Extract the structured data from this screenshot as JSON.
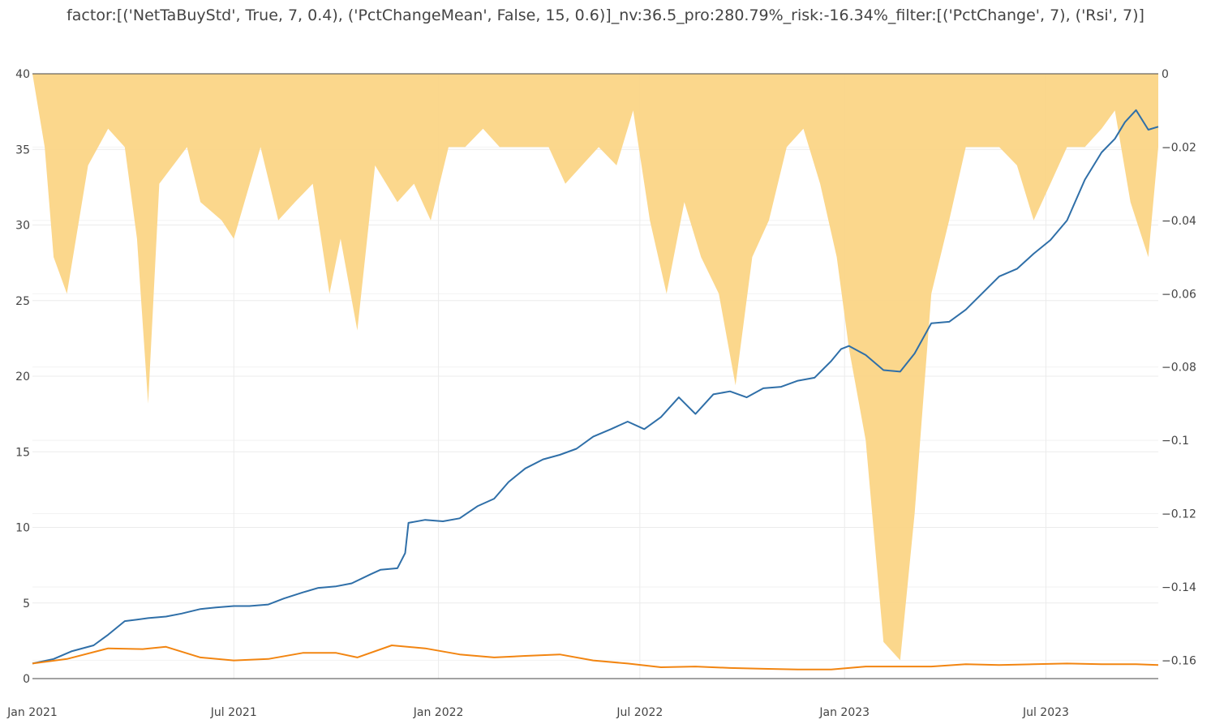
{
  "chart_data": {
    "type": "line",
    "title": "factor:[('NetTaBuyStd', True, 7, 0.4), ('PctChangeMean', False, 15, 0.6)]_nv:36.5_pro:280.79%_risk:-16.34%_filter:[('PctChange', 7), ('Rsi', 7)]",
    "xlabel": "",
    "ylabel": "",
    "y2label": "",
    "x_ticks": [
      "Jan 2021",
      "Jul 2021",
      "Jan 2022",
      "Jul 2022",
      "Jan 2023",
      "Jul 2023"
    ],
    "y_ticks": [
      0,
      5,
      10,
      15,
      20,
      25,
      30,
      35,
      40
    ],
    "y2_ticks": [
      0,
      -0.02,
      -0.04,
      -0.06,
      -0.08,
      -0.1,
      -0.12,
      -0.14,
      -0.16
    ],
    "ylim": [
      0,
      40
    ],
    "y2lim": [
      -0.165,
      0
    ],
    "xlim": [
      "2021-01-01",
      "2023-10-10"
    ],
    "grid": true,
    "colors": {
      "net_value": "#2f6fa8",
      "benchmark": "#f28511",
      "drawdown": "#fbd586"
    },
    "series": [
      {
        "type": "line",
        "axis": "left",
        "x": [
          "2021-01-01",
          "2021-01-20",
          "2021-02-05",
          "2021-02-25",
          "2021-03-10",
          "2021-03-25",
          "2021-04-05",
          "2021-04-15",
          "2021-05-01",
          "2021-05-15",
          "2021-06-01",
          "2021-06-15",
          "2021-07-01",
          "2021-07-15",
          "2021-08-01",
          "2021-08-15",
          "2021-09-01",
          "2021-09-15",
          "2021-10-01",
          "2021-10-15",
          "2021-11-01",
          "2021-11-10",
          "2021-11-25",
          "2021-12-02",
          "2021-12-05",
          "2021-12-20",
          "2022-01-05",
          "2022-01-20",
          "2022-02-05",
          "2022-02-20",
          "2022-03-05",
          "2022-03-20",
          "2022-04-05",
          "2022-04-20",
          "2022-05-05",
          "2022-05-20",
          "2022-06-05",
          "2022-06-20",
          "2022-07-05",
          "2022-07-20",
          "2022-08-05",
          "2022-08-20",
          "2022-09-05",
          "2022-09-20",
          "2022-10-05",
          "2022-10-20",
          "2022-11-05",
          "2022-11-20",
          "2022-12-05",
          "2022-12-20",
          "2022-12-29",
          "2023-01-05",
          "2023-01-20",
          "2023-02-05",
          "2023-02-20",
          "2023-03-05",
          "2023-03-20",
          "2023-04-05",
          "2023-04-20",
          "2023-05-05",
          "2023-05-20",
          "2023-06-05",
          "2023-06-20",
          "2023-07-05",
          "2023-07-20",
          "2023-08-05",
          "2023-08-20",
          "2023-09-01",
          "2023-09-10",
          "2023-09-20",
          "2023-10-01",
          "2023-10-10"
        ],
        "y": [
          1.0,
          1.3,
          1.8,
          2.2,
          2.9,
          3.8,
          3.9,
          4.0,
          4.1,
          4.3,
          4.6,
          4.7,
          4.8,
          4.8,
          4.9,
          5.3,
          5.7,
          6.0,
          6.1,
          6.3,
          6.9,
          7.2,
          7.3,
          8.3,
          10.3,
          10.5,
          10.4,
          10.6,
          11.4,
          11.9,
          13.0,
          13.9,
          14.5,
          14.8,
          15.2,
          16.0,
          16.5,
          17.0,
          16.5,
          17.3,
          18.6,
          17.5,
          18.8,
          19.0,
          18.6,
          19.2,
          19.3,
          19.7,
          19.9,
          21.0,
          21.8,
          22.0,
          21.4,
          20.4,
          20.3,
          21.5,
          23.5,
          23.6,
          24.4,
          25.5,
          26.6,
          27.1,
          28.1,
          29.0,
          30.3,
          33.0,
          34.8,
          35.7,
          36.8,
          37.6,
          36.3,
          36.5
        ]
      },
      {
        "type": "line",
        "axis": "left",
        "x": [
          "2021-01-01",
          "2021-02-01",
          "2021-03-10",
          "2021-04-10",
          "2021-05-01",
          "2021-06-01",
          "2021-07-01",
          "2021-08-01",
          "2021-09-01",
          "2021-10-01",
          "2021-10-20",
          "2021-11-20",
          "2021-12-20",
          "2022-01-20",
          "2022-02-20",
          "2022-03-20",
          "2022-04-20",
          "2022-05-20",
          "2022-06-20",
          "2022-07-20",
          "2022-08-20",
          "2022-09-20",
          "2022-10-20",
          "2022-11-20",
          "2022-12-20",
          "2023-01-20",
          "2023-02-20",
          "2023-03-20",
          "2023-04-20",
          "2023-05-20",
          "2023-06-20",
          "2023-07-20",
          "2023-08-20",
          "2023-09-20",
          "2023-10-10"
        ],
        "y": [
          1.0,
          1.3,
          2.0,
          1.95,
          2.1,
          1.4,
          1.2,
          1.3,
          1.7,
          1.7,
          1.4,
          2.2,
          2.0,
          1.6,
          1.4,
          1.5,
          1.6,
          1.2,
          1.0,
          0.75,
          0.8,
          0.7,
          0.65,
          0.6,
          0.6,
          0.8,
          0.8,
          0.8,
          0.95,
          0.9,
          0.95,
          1.0,
          0.95,
          0.95,
          0.9
        ]
      },
      {
        "type": "area",
        "axis": "right",
        "x": [
          "2021-01-01",
          "2021-01-12",
          "2021-01-20",
          "2021-02-01",
          "2021-02-20",
          "2021-03-10",
          "2021-03-25",
          "2021-04-05",
          "2021-04-15",
          "2021-04-25",
          "2021-05-20",
          "2021-06-01",
          "2021-06-20",
          "2021-07-01",
          "2021-07-25",
          "2021-08-10",
          "2021-08-25",
          "2021-09-10",
          "2021-09-25",
          "2021-10-05",
          "2021-10-20",
          "2021-11-05",
          "2021-11-25",
          "2021-12-10",
          "2021-12-25",
          "2022-01-10",
          "2022-01-25",
          "2022-02-10",
          "2022-02-25",
          "2022-03-10",
          "2022-03-25",
          "2022-04-10",
          "2022-04-25",
          "2022-05-10",
          "2022-05-25",
          "2022-06-10",
          "2022-06-25",
          "2022-07-10",
          "2022-07-25",
          "2022-08-10",
          "2022-08-25",
          "2022-09-10",
          "2022-09-25",
          "2022-10-10",
          "2022-10-25",
          "2022-11-10",
          "2022-11-25",
          "2022-12-10",
          "2022-12-25",
          "2023-01-05",
          "2023-01-20",
          "2023-02-05",
          "2023-02-20",
          "2023-03-05",
          "2023-03-20",
          "2023-04-05",
          "2023-04-20",
          "2023-05-05",
          "2023-05-20",
          "2023-06-05",
          "2023-06-20",
          "2023-07-05",
          "2023-07-20",
          "2023-08-05",
          "2023-08-20",
          "2023-09-01",
          "2023-09-15",
          "2023-10-01",
          "2023-10-10"
        ],
        "y": [
          0,
          -0.02,
          -0.05,
          -0.06,
          -0.025,
          -0.015,
          -0.02,
          -0.045,
          -0.09,
          -0.03,
          -0.02,
          -0.035,
          -0.04,
          -0.045,
          -0.02,
          -0.04,
          -0.035,
          -0.03,
          -0.06,
          -0.045,
          -0.07,
          -0.025,
          -0.035,
          -0.03,
          -0.04,
          -0.02,
          -0.02,
          -0.015,
          -0.02,
          -0.02,
          -0.02,
          -0.02,
          -0.03,
          -0.025,
          -0.02,
          -0.025,
          -0.01,
          -0.04,
          -0.06,
          -0.035,
          -0.05,
          -0.06,
          -0.085,
          -0.05,
          -0.04,
          -0.02,
          -0.015,
          -0.03,
          -0.05,
          -0.075,
          -0.1,
          -0.155,
          -0.16,
          -0.12,
          -0.06,
          -0.04,
          -0.02,
          -0.02,
          -0.02,
          -0.025,
          -0.04,
          -0.03,
          -0.02,
          -0.02,
          -0.015,
          -0.01,
          -0.035,
          -0.05,
          -0.02
        ]
      }
    ]
  }
}
